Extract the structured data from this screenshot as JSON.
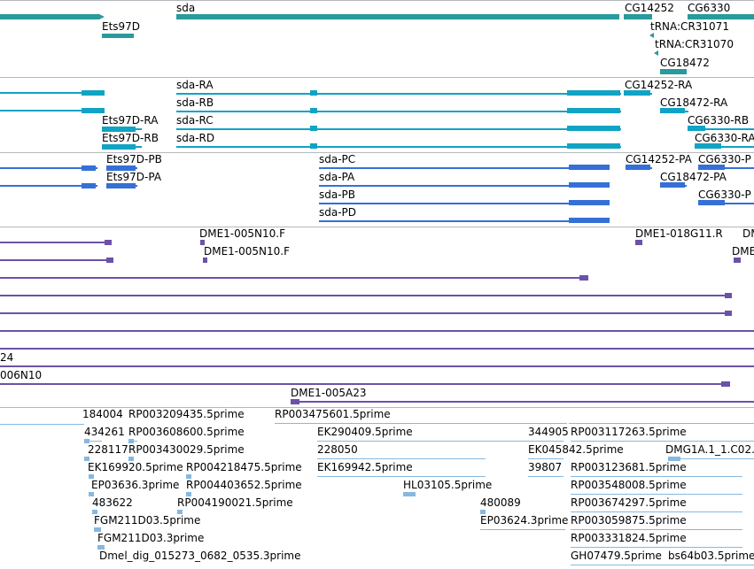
{
  "tracks": {
    "genes": {
      "labels": [
        "sda",
        "Ets97D",
        "CG14252",
        "CG6330",
        "tRNA:CR31071",
        "tRNA:CR31070",
        "CG18472"
      ]
    },
    "transcripts_a": {
      "labels": [
        "sda-RA",
        "sda-RB",
        "sda-RC",
        "sda-RD",
        "Ets97D-RA",
        "Ets97D-RB",
        "CG14252-RA",
        "CG18472-RA",
        "CG6330-RB",
        "CG6330-RA"
      ]
    },
    "transcripts_b": {
      "labels": [
        "Ets97D-PB",
        "Ets97D-PA",
        "sda-PC",
        "sda-PA",
        "sda-PB",
        "sda-PD",
        "CG14252-PA",
        "CG6330-P",
        "CG18472-PA",
        "CG6330-P"
      ]
    },
    "clones": {
      "labels": [
        "DME1-005N10.F",
        "DME1-005N10.F",
        "DME1-018G11.R",
        "DM",
        "DME",
        "24",
        "006N10",
        "DME1-005A23"
      ]
    },
    "ests": {
      "labels": [
        "184004",
        "RP003209435.5prime",
        "RP003475601.5prime",
        "434261",
        "RP003608600.5prime",
        "EK290409.5prime",
        "344905",
        "RP003117263.5prime",
        "228117",
        "RP003430029.5prime",
        "228050",
        "EK045842.5prime",
        "DMG1A.1_1.C02.",
        "EK169920.5prime",
        "RP004218475.5prime",
        "EK169942.5prime",
        "39807",
        "RP003123681.5prime",
        "EP03636.3prime",
        "RP004403652.5prime",
        "HL03105.5prime",
        "RP003548008.5prime",
        "483622",
        "RP004190021.5prime",
        "480089",
        "RP003674297.5prime",
        "FGM211D03.5prime",
        "EP03624.3prime",
        "RP003059875.5prime",
        "FGM211D03.3prime",
        "RP003331824.5prime",
        "Dmel_dig_015273_0682_0535.3prime",
        "GH07479.5prime",
        "bs64b03.5prime"
      ]
    }
  }
}
